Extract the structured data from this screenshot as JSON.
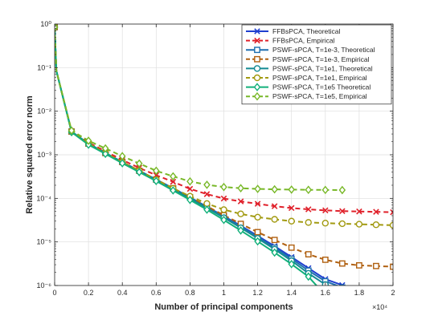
{
  "chart_data": {
    "type": "line",
    "title": "",
    "xlabel": "Number of principal components",
    "ylabel": "Relative squared error norm",
    "x_multiplier_label": "×10⁴",
    "x_scale": "linear",
    "y_scale": "log",
    "xlim": [
      0,
      20000
    ],
    "ylim": [
      1e-06,
      1
    ],
    "x_ticks": [
      0,
      2000,
      4000,
      6000,
      8000,
      10000,
      12000,
      14000,
      16000,
      18000,
      20000
    ],
    "x_tick_labels": [
      "0",
      "0.2",
      "0.4",
      "0.6",
      "0.8",
      "1",
      "1.2",
      "1.4",
      "1.6",
      "1.8",
      "2"
    ],
    "y_ticks": [
      1e-06,
      1e-05,
      0.0001,
      0.001,
      0.01,
      0.1,
      1
    ],
    "y_tick_labels": [
      "10⁻⁶",
      "10⁻⁵",
      "10⁻⁴",
      "10⁻³",
      "10⁻²",
      "10⁻¹",
      "10⁰"
    ],
    "grid": true,
    "legend_position": "top-right",
    "series": [
      {
        "name": "FFBsPCA, Theoretical",
        "color": "#1f3fcf",
        "dash": "solid",
        "marker": "x",
        "x": [
          0,
          100,
          1000,
          2000,
          3000,
          4000,
          5000,
          6000,
          7000,
          8000,
          9000,
          10000,
          11000,
          12000,
          13000,
          14000,
          15000,
          16000,
          17000,
          17800
        ],
        "y": [
          0.85,
          0.085,
          0.0034,
          0.0018,
          0.0011,
          0.00068,
          0.00043,
          0.00027,
          0.00017,
          0.000105,
          6.4e-05,
          3.9e-05,
          2.35e-05,
          1.38e-05,
          8e-06,
          4.5e-06,
          2.5e-06,
          1.4e-06,
          1.02e-06,
          8e-07
        ]
      },
      {
        "name": "FFBsPCA, Empirical",
        "color": "#e0202a",
        "dash": "dashed",
        "marker": "x",
        "x": [
          0,
          100,
          1000,
          2000,
          3000,
          4000,
          5000,
          6000,
          7000,
          8000,
          9000,
          10000,
          11000,
          12000,
          13000,
          14000,
          15000,
          16000,
          17000,
          18000,
          19000,
          20000
        ],
        "y": [
          0.85,
          0.085,
          0.0035,
          0.0019,
          0.0012,
          0.00076,
          0.0005,
          0.00034,
          0.00024,
          0.000165,
          0.000125,
          9.9e-05,
          8.5e-05,
          7.5e-05,
          6.6e-05,
          6e-05,
          5.6e-05,
          5.3e-05,
          5.1e-05,
          5e-05,
          4.9e-05,
          4.8e-05
        ]
      },
      {
        "name": "PSWF-sPCA, T=1e-3, Theoretical",
        "color": "#1f6fb0",
        "dash": "solid",
        "marker": "square",
        "x": [
          0,
          100,
          1000,
          2000,
          3000,
          4000,
          5000,
          6000,
          7000,
          8000,
          9000,
          10000,
          11000,
          12000,
          13000,
          14000,
          15000,
          16000,
          17000,
          17400
        ],
        "y": [
          0.85,
          0.085,
          0.0034,
          0.0018,
          0.0011,
          0.00068,
          0.00043,
          0.00027,
          0.00017,
          0.000105,
          6.4e-05,
          3.8e-05,
          2.25e-05,
          1.31e-05,
          7.4e-06,
          4.1e-06,
          2.2e-06,
          1.25e-06,
          9e-07,
          8e-07
        ]
      },
      {
        "name": "PSWF-sPCA, T=1e-3, Empirical",
        "color": "#b06010",
        "dash": "dashed",
        "marker": "square",
        "x": [
          0,
          100,
          1000,
          2000,
          3000,
          4000,
          5000,
          6000,
          7000,
          8000,
          9000,
          10000,
          11000,
          12000,
          13000,
          14000,
          15000,
          16000,
          17000,
          18000,
          19000,
          20000
        ],
        "y": [
          0.85,
          0.085,
          0.0034,
          0.0018,
          0.0011,
          0.00068,
          0.00043,
          0.00027,
          0.00017,
          0.000106,
          6.6e-05,
          4.1e-05,
          2.6e-05,
          1.68e-05,
          1.11e-05,
          7.4e-06,
          5.2e-06,
          3.9e-06,
          3.2e-06,
          2.9e-06,
          2.8e-06,
          2.7e-06
        ]
      },
      {
        "name": "PSWF-sPCA, T=1e1, Theoretical",
        "color": "#138a93",
        "dash": "solid",
        "marker": "circle",
        "x": [
          0,
          100,
          1000,
          2000,
          3000,
          4000,
          5000,
          6000,
          7000,
          8000,
          9000,
          10000,
          11000,
          12000,
          13000,
          14000,
          15000,
          16000,
          16900
        ],
        "y": [
          0.85,
          0.085,
          0.0034,
          0.0018,
          0.0011,
          0.00067,
          0.00042,
          0.00026,
          0.000162,
          0.0001,
          6e-05,
          3.6e-05,
          2.11e-05,
          1.21e-05,
          6.8e-06,
          3.7e-06,
          1.9e-06,
          1.05e-06,
          8e-07
        ]
      },
      {
        "name": "PSWF-sPCA, T=1e1, Empirical",
        "color": "#a29a10",
        "dash": "dashed",
        "marker": "circle",
        "x": [
          0,
          100,
          1000,
          2000,
          3000,
          4000,
          5000,
          6000,
          7000,
          8000,
          9000,
          10000,
          11000,
          12000,
          13000,
          14000,
          15000,
          16000,
          17000,
          18000,
          19000,
          20000
        ],
        "y": [
          0.85,
          0.085,
          0.0034,
          0.0018,
          0.0011,
          0.00068,
          0.00043,
          0.00027,
          0.00017,
          0.000112,
          7.6e-05,
          5.5e-05,
          4.4e-05,
          3.7e-05,
          3.3e-05,
          3e-05,
          2.8e-05,
          2.7e-05,
          2.62e-05,
          2.55e-05,
          2.48e-05,
          2.42e-05
        ]
      },
      {
        "name": "PSWF-sPCA, T=1e5 Theoretical",
        "color": "#12b07a",
        "dash": "solid",
        "marker": "diamond",
        "x": [
          0,
          100,
          1000,
          2000,
          3000,
          4000,
          5000,
          6000,
          7000,
          8000,
          9000,
          10000,
          11000,
          12000,
          13000,
          14000,
          15000,
          15700
        ],
        "y": [
          0.85,
          0.085,
          0.0033,
          0.0017,
          0.00105,
          0.00064,
          0.0004,
          0.00025,
          0.000152,
          9.2e-05,
          5.5e-05,
          3.2e-05,
          1.83e-05,
          1.03e-05,
          5.7e-06,
          3.1e-06,
          1.6e-06,
          8e-07
        ]
      },
      {
        "name": "PSWF-sPCA, T=1e5, Empirical",
        "color": "#78b828",
        "dash": "dashed",
        "marker": "diamond",
        "x": [
          0,
          100,
          1000,
          2000,
          3000,
          4000,
          5000,
          6000,
          7000,
          8000,
          9000,
          10000,
          11000,
          12000,
          13000,
          14000,
          15000,
          16000,
          17000
        ],
        "y": [
          0.85,
          0.085,
          0.0036,
          0.0021,
          0.0014,
          0.00093,
          0.00063,
          0.00043,
          0.00032,
          0.000245,
          0.000205,
          0.000182,
          0.000171,
          0.000165,
          0.000161,
          0.000159,
          0.000157,
          0.000156,
          0.000155
        ]
      }
    ]
  }
}
